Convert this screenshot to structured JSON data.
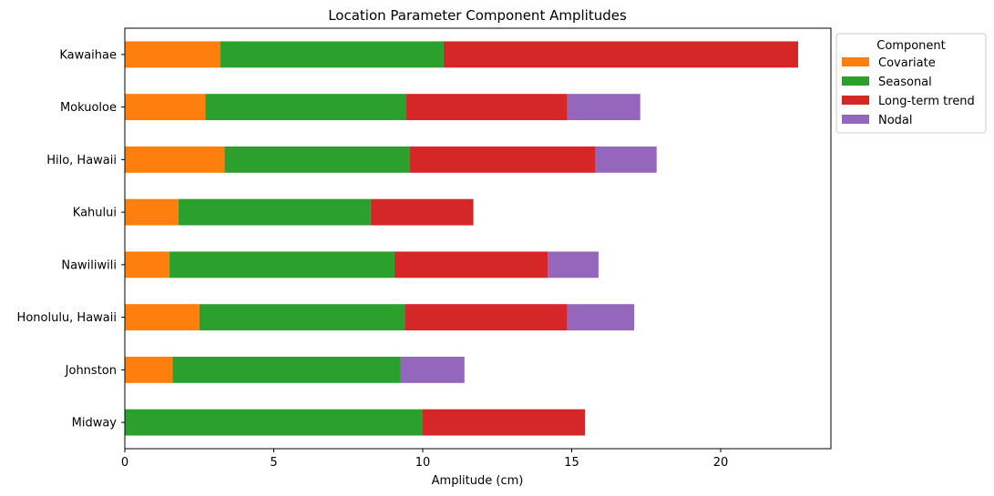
{
  "chart_data": {
    "type": "bar",
    "orientation": "horizontal",
    "stacked": true,
    "title": "Location Parameter Component Amplitudes",
    "xlabel": "Amplitude (cm)",
    "ylabel": "",
    "xlim": [
      0,
      23.7
    ],
    "xticks": [
      0,
      5,
      10,
      15,
      20
    ],
    "grid": false,
    "legend_position": "outside-top-right",
    "legend_title": "Component",
    "categories": [
      "Kawaihae",
      "Mokuoloe",
      "Hilo, Hawaii",
      "Kahului",
      "Nawiliwili",
      "Honolulu, Hawaii",
      "Johnston",
      "Midway"
    ],
    "series": [
      {
        "name": "Covariate",
        "color": "#ff7f0e",
        "values": [
          3.2,
          2.7,
          3.35,
          1.8,
          1.5,
          2.5,
          1.6,
          0
        ]
      },
      {
        "name": "Seasonal",
        "color": "#2ca02c",
        "values": [
          7.5,
          6.75,
          6.2,
          6.45,
          7.55,
          6.9,
          7.65,
          10.0
        ]
      },
      {
        "name": "Long-term trend",
        "color": "#d62728",
        "values": [
          11.9,
          5.4,
          6.25,
          3.45,
          5.15,
          5.45,
          0,
          5.45
        ]
      },
      {
        "name": "Nodal",
        "color": "#9467bd",
        "values": [
          0,
          2.45,
          2.05,
          0,
          1.7,
          2.25,
          2.15,
          0
        ]
      }
    ]
  }
}
